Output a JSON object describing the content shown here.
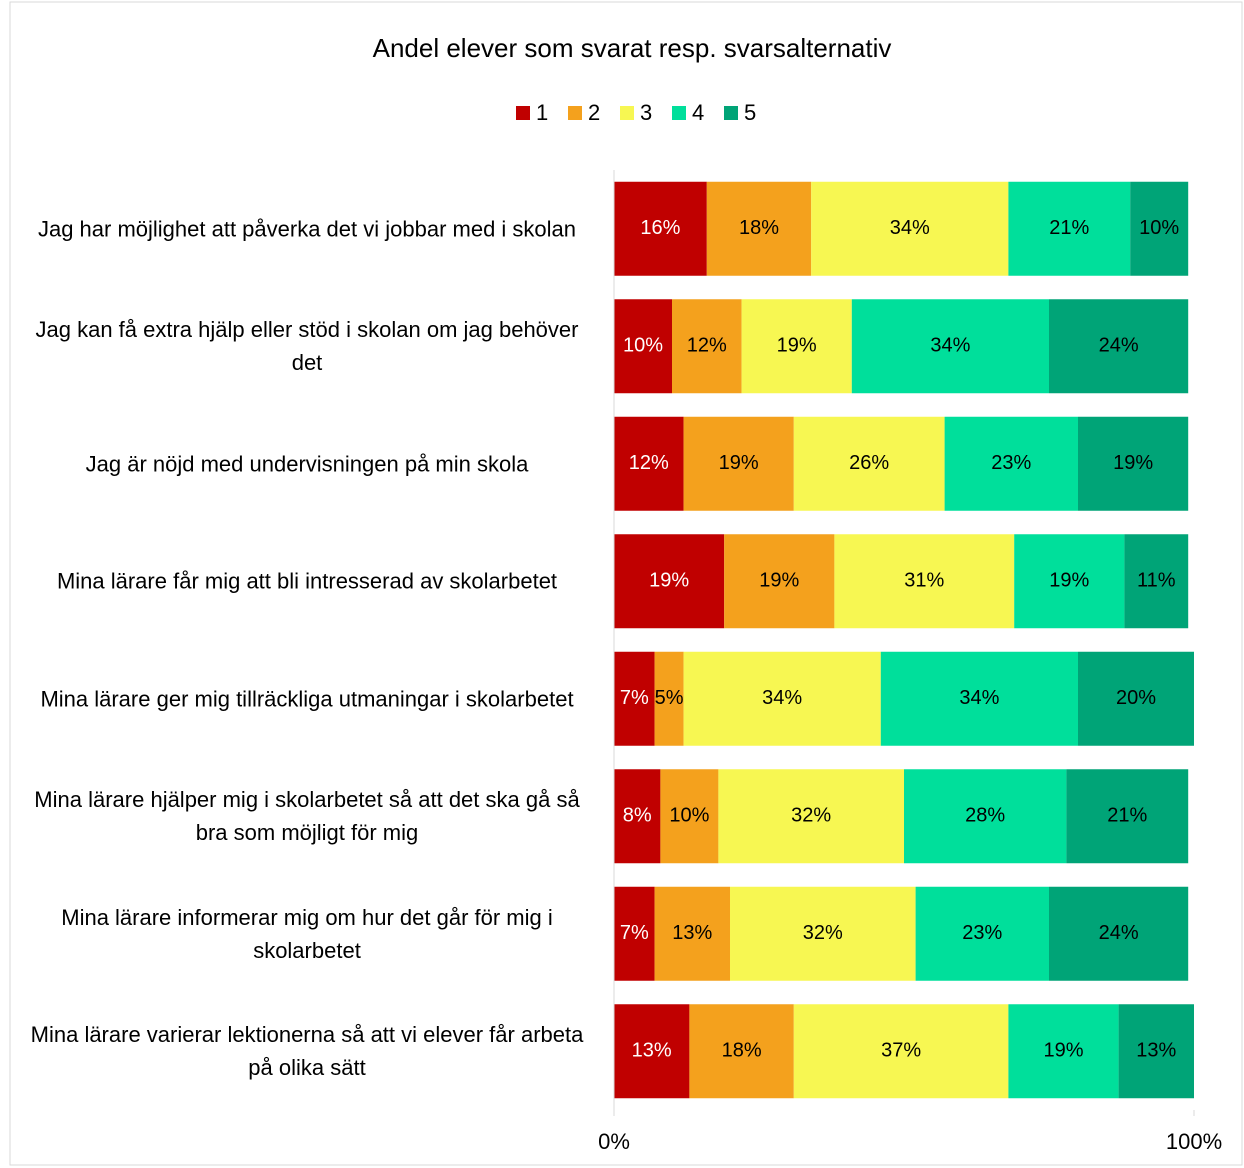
{
  "chart_data": {
    "type": "stacked-bar-horizontal",
    "title": "Andel elever som svarat resp. svarsalternativ",
    "categories": [
      "Jag har möjlighet att påverka det vi jobbar med i skolan",
      "Jag kan få extra hjälp eller stöd i skolan om jag behöver det",
      "Jag är nöjd med undervisningen på min skola",
      "Mina lärare får mig att bli intresserad av skolarbetet",
      "Mina lärare ger mig tillräckliga utmaningar i skolarbetet",
      "Mina lärare hjälper mig i skolarbetet så att det ska gå så bra som möjligt för mig",
      "Mina lärare informerar mig om hur det går för mig i skolarbetet",
      "Mina lärare varierar lektionerna så att vi elever får arbeta på olika sätt"
    ],
    "series": [
      {
        "name": "1",
        "color": "#c00000",
        "label_color": "#ffffff",
        "values": [
          16,
          10,
          12,
          19,
          7,
          8,
          7,
          13
        ],
        "value_labels": [
          "16%",
          "10%",
          "12%",
          "19%",
          "7%",
          "8%",
          "7%",
          "13%"
        ]
      },
      {
        "name": "2",
        "color": "#f4a11d",
        "label_color": "#000000",
        "values": [
          18,
          12,
          19,
          19,
          5,
          10,
          13,
          18
        ],
        "value_labels": [
          "18%",
          "12%",
          "19%",
          "19%",
          "5%",
          "10%",
          "13%",
          "18%"
        ]
      },
      {
        "name": "3",
        "color": "#f7f752",
        "label_color": "#000000",
        "values": [
          34,
          19,
          26,
          31,
          34,
          32,
          32,
          37
        ],
        "value_labels": [
          "34%",
          "19%",
          "26%",
          "31%",
          "34%",
          "32%",
          "32%",
          "37%"
        ]
      },
      {
        "name": "4",
        "color": "#00df9b",
        "label_color": "#000000",
        "values": [
          21,
          34,
          23,
          19,
          34,
          28,
          23,
          19
        ],
        "value_labels": [
          "21%",
          "34%",
          "23%",
          "19%",
          "34%",
          "28%",
          "23%",
          "19%"
        ]
      },
      {
        "name": "5",
        "color": "#00a477",
        "label_color": "#000000",
        "values": [
          10,
          24,
          19,
          11,
          20,
          21,
          24,
          13
        ],
        "value_labels": [
          "10%",
          "24%",
          "19%",
          "11%",
          "20%",
          "21%",
          "24%",
          "13%"
        ]
      }
    ],
    "xlim": [
      0,
      100
    ],
    "xticks": [
      {
        "value": 0,
        "label": "0%"
      },
      {
        "value": 100,
        "label": "100%"
      }
    ],
    "legend": "top"
  }
}
